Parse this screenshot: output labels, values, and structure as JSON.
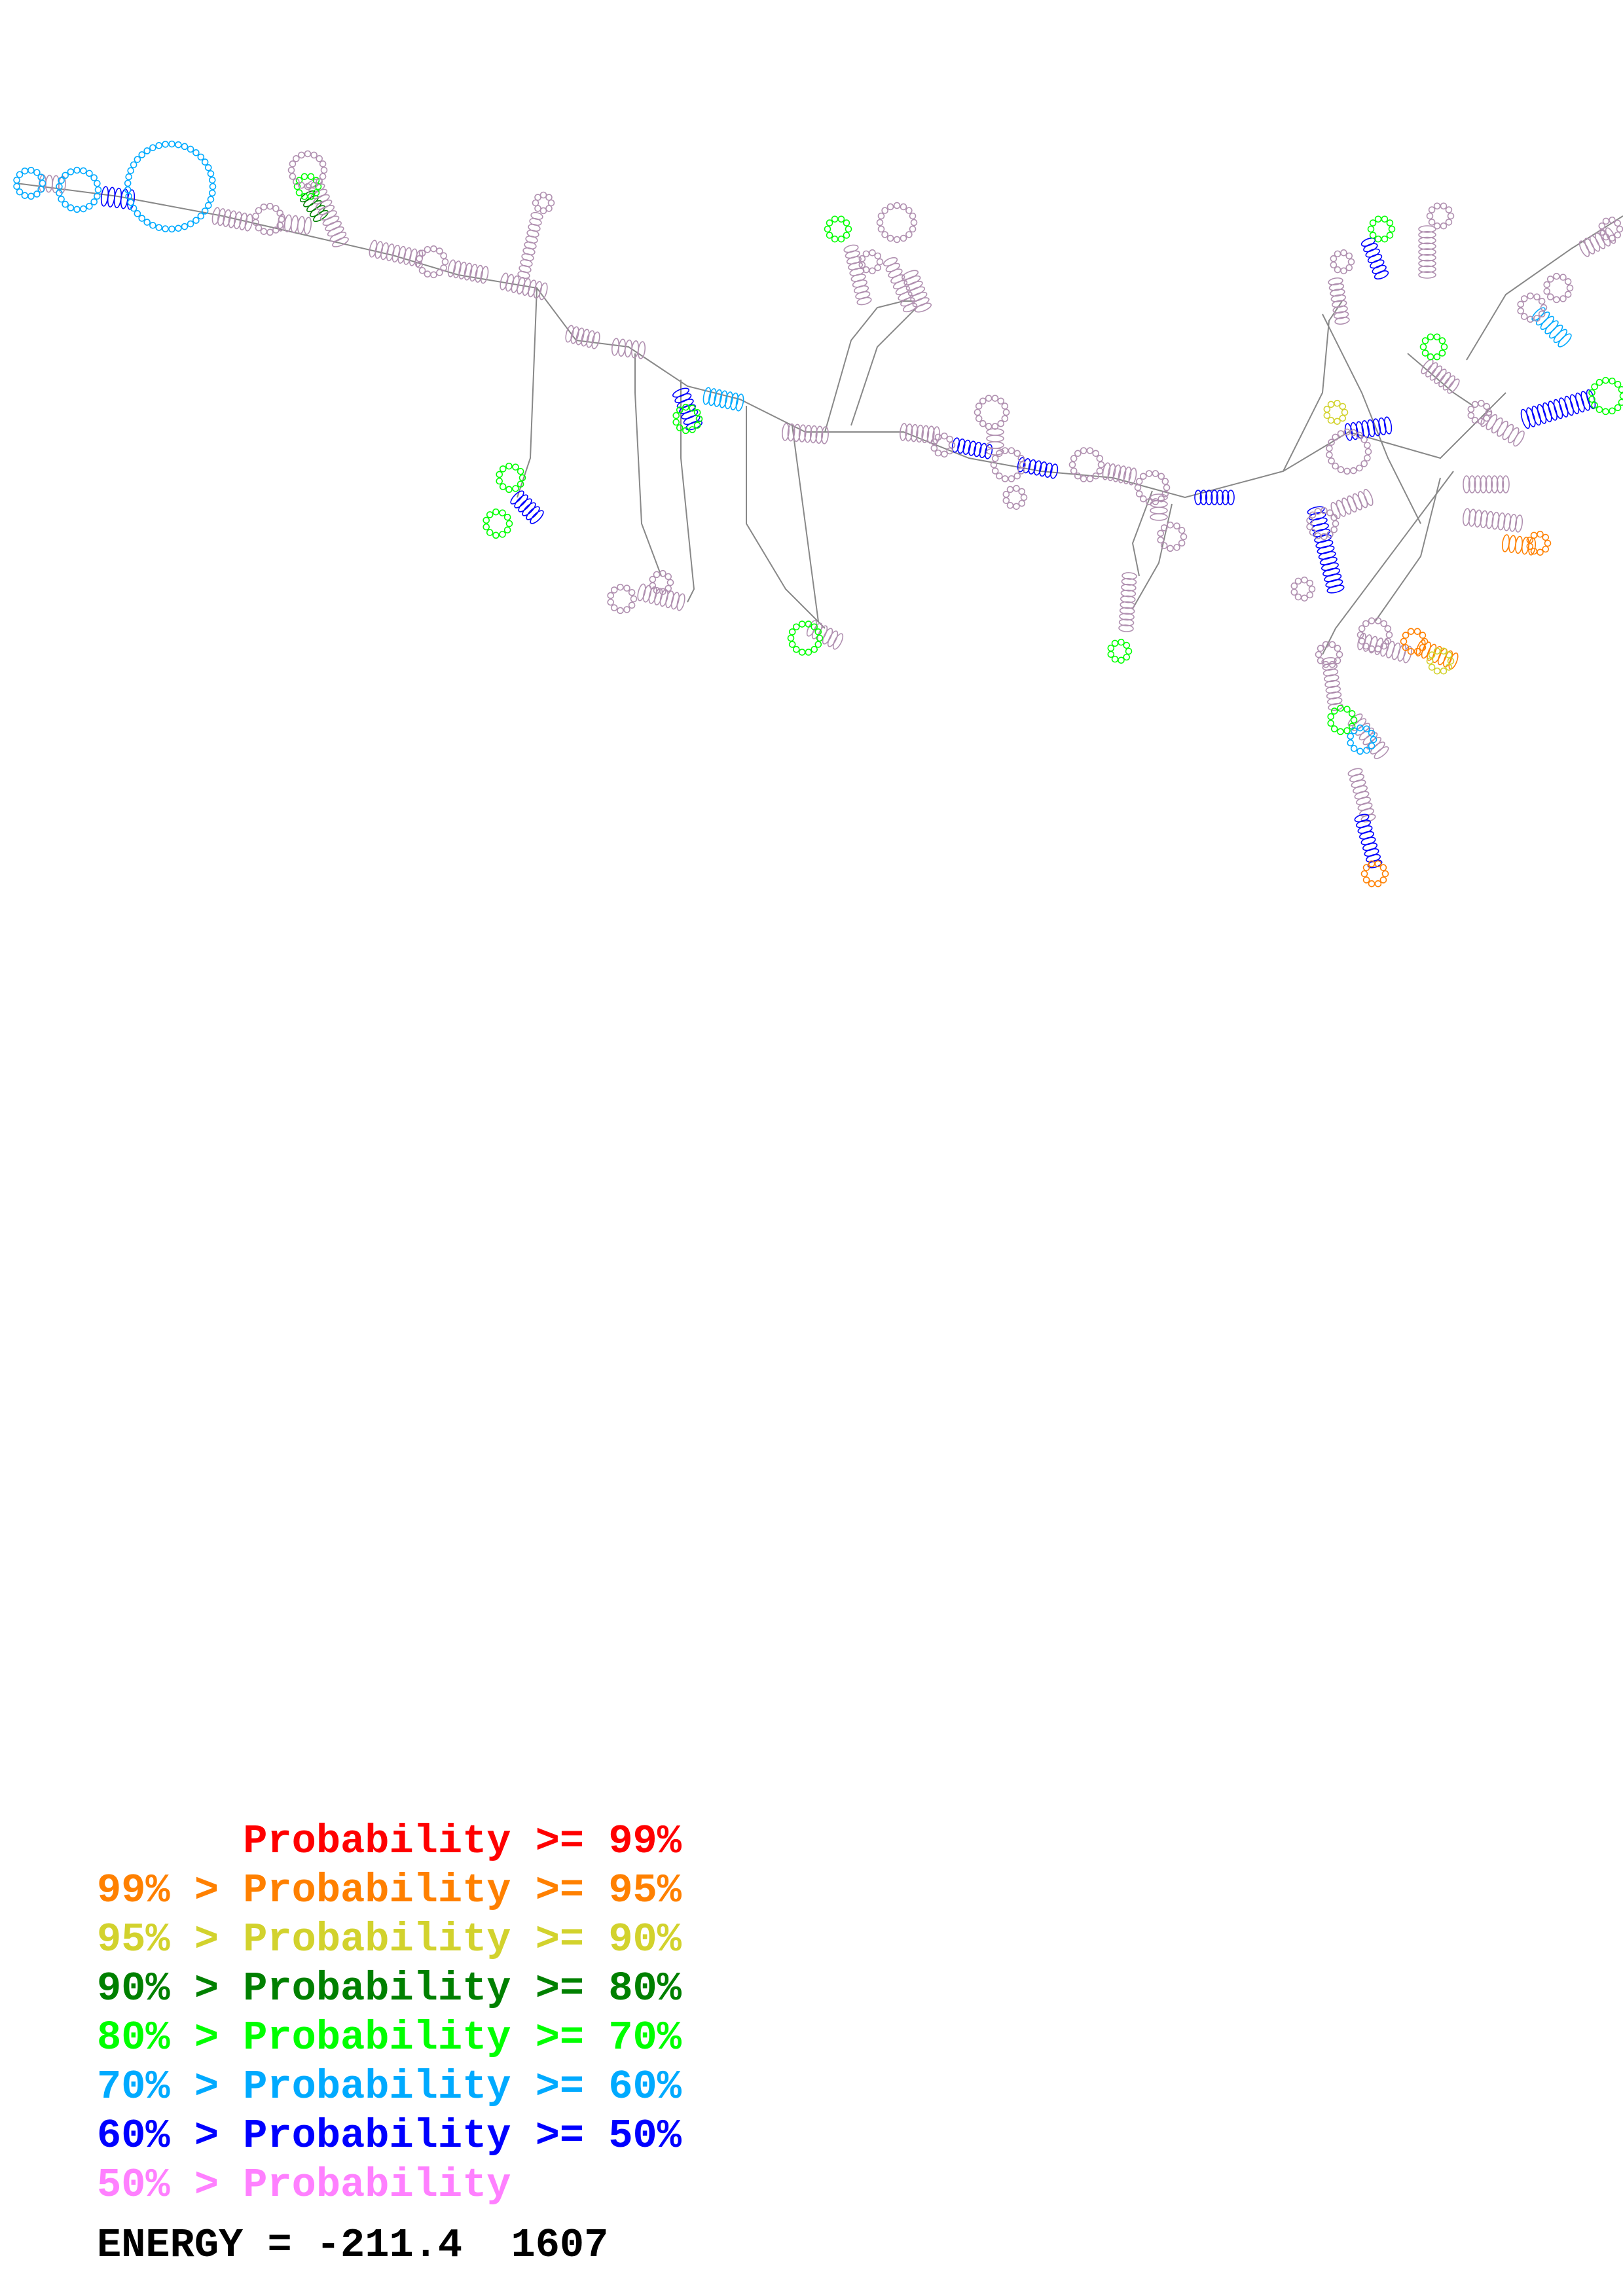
{
  "legend": [
    {
      "text": "      Probability >= 99%",
      "color": "#ff0000"
    },
    {
      "text": "99% > Probability >= 95%",
      "color": "#ff8000"
    },
    {
      "text": "95% > Probability >= 90%",
      "color": "#d2d22d"
    },
    {
      "text": "90% > Probability >= 80%",
      "color": "#008000"
    },
    {
      "text": "80% > Probability >= 70%",
      "color": "#00ff00"
    },
    {
      "text": "70% > Probability >= 60%",
      "color": "#00aaff"
    },
    {
      "text": "60% > Probability >= 50%",
      "color": "#0000ff"
    },
    {
      "text": "50% > Probability",
      "color": "#ff80ff"
    }
  ],
  "energy": "ENERGY = -211.4  1607",
  "structure": {
    "backbone_color": "#888888",
    "nucleotide_outline_color": "#b090b0",
    "pair_colors": [
      "#b090b0",
      "#00ff00",
      "#008000",
      "#0000ff",
      "#00aaff",
      "#d2d22d",
      "#ff8000",
      "#ff0000"
    ]
  }
}
